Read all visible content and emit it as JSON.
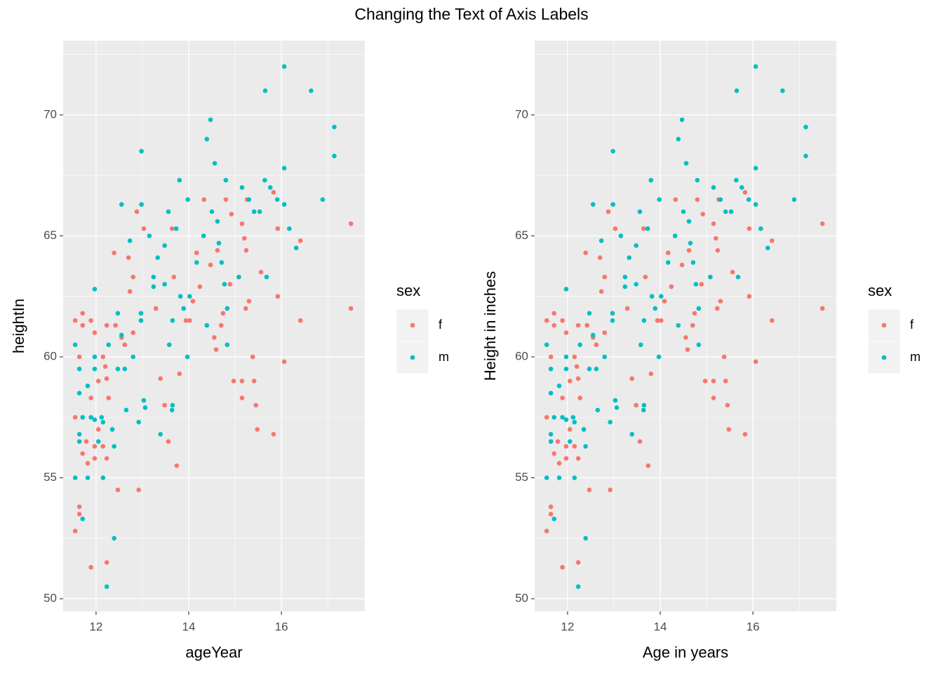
{
  "title": "Changing the Text of Axis Labels",
  "chart_data": [
    {
      "type": "scatter",
      "xlabel": "ageYear",
      "ylabel": "heightIn",
      "legend_title": "sex",
      "legend": "right",
      "grid": true,
      "minor_grid": true,
      "xlim": [
        11.29,
        17.8
      ],
      "ylim": [
        49.48,
        73.07
      ],
      "xticks": [
        12,
        14,
        16
      ],
      "yticks": [
        50,
        55,
        60,
        65,
        70
      ],
      "series": [
        {
          "name": "f",
          "color": "#F8766D",
          "x": [
            11.55,
            11.55,
            11.55,
            11.64,
            11.64,
            11.64,
            11.71,
            11.71,
            11.71,
            11.79,
            11.82,
            11.89,
            11.89,
            11.89,
            11.97,
            11.97,
            11.97,
            12.05,
            12.05,
            12.15,
            12.15,
            12.2,
            12.23,
            12.23,
            12.23,
            12.23,
            12.27,
            12.35,
            12.39,
            12.42,
            12.47,
            12.55,
            12.62,
            12.7,
            12.73,
            12.8,
            12.8,
            12.88,
            12.92,
            12.97,
            13.03,
            13.29,
            13.39,
            13.48,
            13.56,
            13.64,
            13.68,
            13.74,
            13.8,
            13.94,
            14.02,
            14.09,
            14.17,
            14.24,
            14.33,
            14.47,
            14.55,
            14.59,
            14.62,
            14.7,
            14.74,
            14.8,
            14.89,
            14.97,
            15.08,
            15.15,
            15.15,
            15.15,
            15.2,
            15.24,
            15.26,
            15.38,
            15.41,
            15.45,
            15.48,
            15.56,
            15.83,
            15.83,
            15.92,
            15.92,
            16.06,
            16.41,
            16.41,
            17.5,
            17.5,
            15.23,
            15.3,
            14.92
          ],
          "values": [
            52.8,
            57.5,
            61.5,
            53.8,
            53.5,
            60,
            61.8,
            61.3,
            56,
            56.5,
            55.6,
            61.5,
            58.3,
            51.3,
            61,
            55.8,
            56.3,
            59,
            57,
            60,
            56.3,
            59.6,
            61.3,
            59.1,
            55.8,
            51.5,
            58.3,
            57,
            64.3,
            61.3,
            54.5,
            60.8,
            60.5,
            64.1,
            62.7,
            61,
            63.3,
            66,
            54.5,
            61.8,
            65.3,
            62,
            59.1,
            58,
            56.5,
            65.3,
            63.3,
            55.5,
            59.3,
            61.5,
            61.5,
            62.3,
            64.3,
            62.9,
            66.5,
            63.8,
            60.8,
            60.3,
            64.4,
            61.3,
            61.8,
            66.5,
            63,
            59,
            63.3,
            59,
            65.5,
            58.3,
            64.9,
            64.4,
            66.5,
            60,
            59,
            58,
            57,
            63.5,
            56.8,
            66.8,
            62.5,
            65.3,
            59.8,
            61.5,
            64.8,
            65.5,
            62,
            62,
            62.3,
            65.9
          ]
        },
        {
          "name": "m",
          "color": "#00BFC4",
          "x": [
            11.55,
            11.55,
            11.64,
            11.64,
            11.64,
            11.71,
            11.71,
            11.64,
            11.82,
            11.82,
            11.89,
            11.97,
            11.97,
            11.97,
            11.97,
            12.05,
            12.12,
            12.15,
            12.15,
            12.23,
            12.27,
            12.35,
            12.39,
            12.39,
            12.47,
            12.47,
            12.55,
            12.55,
            12.62,
            12.65,
            12.73,
            12.8,
            12.92,
            12.97,
            12.97,
            12.98,
            12.98,
            13.03,
            13.06,
            13.15,
            13.24,
            13.24,
            13.33,
            13.39,
            13.48,
            13.48,
            13.56,
            13.58,
            13.64,
            13.65,
            13.65,
            13.73,
            13.8,
            13.82,
            13.89,
            13.97,
            13.98,
            14.17,
            14.32,
            14.39,
            14.39,
            14.47,
            14.5,
            14.56,
            14.62,
            14.65,
            14.71,
            14.77,
            14.8,
            14.83,
            15.08,
            15.15,
            15.3,
            15.41,
            15.53,
            15.64,
            15.65,
            15.68,
            15.76,
            15.91,
            16.06,
            16.06,
            16.06,
            16.17,
            16.32,
            16.64,
            16.89,
            17.14,
            17.14,
            14.83,
            14.02
          ],
          "values": [
            60.5,
            55,
            56.8,
            56.5,
            59.5,
            57.5,
            53.3,
            58.5,
            55,
            58.8,
            57.5,
            62.8,
            60,
            59.5,
            57.4,
            56.5,
            57.5,
            55,
            57.3,
            50.5,
            60.5,
            57,
            56.3,
            52.5,
            61.8,
            59.5,
            66.3,
            60.9,
            59.5,
            57.8,
            64.8,
            60,
            57.3,
            61.8,
            61.5,
            66.3,
            68.5,
            58.2,
            57.9,
            65,
            62.9,
            63.3,
            64.1,
            56.8,
            64.6,
            63,
            66,
            60.5,
            57.8,
            58,
            61.5,
            65.3,
            67.3,
            62.5,
            62,
            60,
            66.5,
            63.9,
            65,
            69,
            61.3,
            69.8,
            66,
            68,
            65.6,
            64.7,
            63.9,
            63,
            67.3,
            60.5,
            63.3,
            67,
            66.5,
            66,
            66,
            67.3,
            71,
            63.3,
            67,
            66.5,
            66.3,
            67.8,
            72,
            65.3,
            64.5,
            71,
            66.5,
            69.5,
            68.3,
            62,
            62.5
          ]
        }
      ]
    },
    {
      "type": "scatter",
      "xlabel": "Age in years",
      "ylabel": "Height in inches",
      "legend_title": "sex",
      "legend": "right",
      "grid": true,
      "minor_grid": true,
      "xlim": [
        11.29,
        17.8
      ],
      "ylim": [
        49.48,
        73.07
      ],
      "xticks": [
        12,
        14,
        16
      ],
      "yticks": [
        50,
        55,
        60,
        65,
        70
      ],
      "series": [
        {
          "name": "f",
          "color": "#F8766D",
          "x": [
            11.55,
            11.55,
            11.55,
            11.64,
            11.64,
            11.64,
            11.71,
            11.71,
            11.71,
            11.79,
            11.82,
            11.89,
            11.89,
            11.89,
            11.97,
            11.97,
            11.97,
            12.05,
            12.05,
            12.15,
            12.15,
            12.2,
            12.23,
            12.23,
            12.23,
            12.23,
            12.27,
            12.35,
            12.39,
            12.42,
            12.47,
            12.55,
            12.62,
            12.7,
            12.73,
            12.8,
            12.8,
            12.88,
            12.92,
            12.97,
            13.03,
            13.29,
            13.39,
            13.48,
            13.56,
            13.64,
            13.68,
            13.74,
            13.8,
            13.94,
            14.02,
            14.09,
            14.17,
            14.24,
            14.33,
            14.47,
            14.55,
            14.59,
            14.62,
            14.7,
            14.74,
            14.8,
            14.89,
            14.97,
            15.08,
            15.15,
            15.15,
            15.15,
            15.2,
            15.24,
            15.26,
            15.38,
            15.41,
            15.45,
            15.48,
            15.56,
            15.83,
            15.83,
            15.92,
            15.92,
            16.06,
            16.41,
            16.41,
            17.5,
            17.5,
            15.23,
            15.3,
            14.92
          ],
          "values": [
            52.8,
            57.5,
            61.5,
            53.8,
            53.5,
            60,
            61.8,
            61.3,
            56,
            56.5,
            55.6,
            61.5,
            58.3,
            51.3,
            61,
            55.8,
            56.3,
            59,
            57,
            60,
            56.3,
            59.6,
            61.3,
            59.1,
            55.8,
            51.5,
            58.3,
            57,
            64.3,
            61.3,
            54.5,
            60.8,
            60.5,
            64.1,
            62.7,
            61,
            63.3,
            66,
            54.5,
            61.8,
            65.3,
            62,
            59.1,
            58,
            56.5,
            65.3,
            63.3,
            55.5,
            59.3,
            61.5,
            61.5,
            62.3,
            64.3,
            62.9,
            66.5,
            63.8,
            60.8,
            60.3,
            64.4,
            61.3,
            61.8,
            66.5,
            63,
            59,
            63.3,
            59,
            65.5,
            58.3,
            64.9,
            64.4,
            66.5,
            60,
            59,
            58,
            57,
            63.5,
            56.8,
            66.8,
            62.5,
            65.3,
            59.8,
            61.5,
            64.8,
            65.5,
            62,
            62,
            62.3,
            65.9
          ]
        },
        {
          "name": "m",
          "color": "#00BFC4",
          "x": [
            11.55,
            11.55,
            11.64,
            11.64,
            11.64,
            11.71,
            11.71,
            11.64,
            11.82,
            11.82,
            11.89,
            11.97,
            11.97,
            11.97,
            11.97,
            12.05,
            12.12,
            12.15,
            12.15,
            12.23,
            12.27,
            12.35,
            12.39,
            12.39,
            12.47,
            12.47,
            12.55,
            12.55,
            12.62,
            12.65,
            12.73,
            12.8,
            12.92,
            12.97,
            12.97,
            12.98,
            12.98,
            13.03,
            13.06,
            13.15,
            13.24,
            13.24,
            13.33,
            13.39,
            13.48,
            13.48,
            13.56,
            13.58,
            13.64,
            13.65,
            13.65,
            13.73,
            13.8,
            13.82,
            13.89,
            13.97,
            13.98,
            14.17,
            14.32,
            14.39,
            14.39,
            14.47,
            14.5,
            14.56,
            14.62,
            14.65,
            14.71,
            14.77,
            14.8,
            14.83,
            15.08,
            15.15,
            15.3,
            15.41,
            15.53,
            15.64,
            15.65,
            15.68,
            15.76,
            15.91,
            16.06,
            16.06,
            16.06,
            16.17,
            16.32,
            16.64,
            16.89,
            17.14,
            17.14,
            14.83,
            14.02
          ],
          "values": [
            60.5,
            55,
            56.8,
            56.5,
            59.5,
            57.5,
            53.3,
            58.5,
            55,
            58.8,
            57.5,
            62.8,
            60,
            59.5,
            57.4,
            56.5,
            57.5,
            55,
            57.3,
            50.5,
            60.5,
            57,
            56.3,
            52.5,
            61.8,
            59.5,
            66.3,
            60.9,
            59.5,
            57.8,
            64.8,
            60,
            57.3,
            61.8,
            61.5,
            66.3,
            68.5,
            58.2,
            57.9,
            65,
            62.9,
            63.3,
            64.1,
            56.8,
            64.6,
            63,
            66,
            60.5,
            57.8,
            58,
            61.5,
            65.3,
            67.3,
            62.5,
            62,
            60,
            66.5,
            63.9,
            65,
            69,
            61.3,
            69.8,
            66,
            68,
            65.6,
            64.7,
            63.9,
            63,
            67.3,
            60.5,
            63.3,
            67,
            66.5,
            66,
            66,
            67.3,
            71,
            63.3,
            67,
            66.5,
            66.3,
            67.8,
            72,
            65.3,
            64.5,
            71,
            66.5,
            69.5,
            68.3,
            62,
            62.5
          ]
        }
      ]
    }
  ]
}
